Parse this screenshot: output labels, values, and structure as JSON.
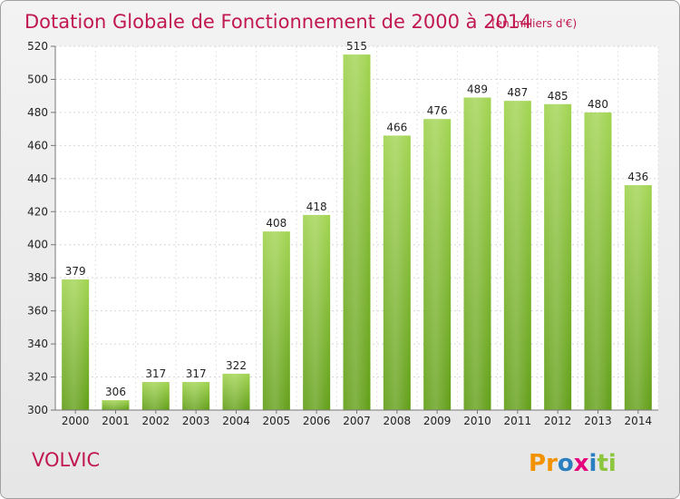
{
  "chart_data": {
    "type": "bar",
    "title": "Dotation Globale de Fonctionnement de 2000 à 2014",
    "subtitle": "(en milliers d'€)",
    "categories": [
      "2000",
      "2001",
      "2002",
      "2003",
      "2004",
      "2005",
      "2006",
      "2007",
      "2008",
      "2009",
      "2010",
      "2011",
      "2012",
      "2013",
      "2014"
    ],
    "values": [
      379,
      306,
      317,
      317,
      322,
      408,
      418,
      515,
      466,
      476,
      489,
      487,
      485,
      480,
      436
    ],
    "ylim": [
      300,
      520
    ],
    "yticks": [
      300,
      320,
      340,
      360,
      380,
      400,
      420,
      440,
      460,
      480,
      500,
      520
    ],
    "grid": true,
    "bar_color": "#8cc63f",
    "title_color": "#c0184f"
  },
  "place_label": "VOLVIC",
  "logo": {
    "letters": [
      "P",
      "r",
      "o",
      "x",
      "i",
      "t",
      "i"
    ],
    "colors": [
      "#f39200",
      "#f39200",
      "#2a7fc1",
      "#e5007e",
      "#2a7fc1",
      "#8cc63f",
      "#8cc63f"
    ]
  }
}
